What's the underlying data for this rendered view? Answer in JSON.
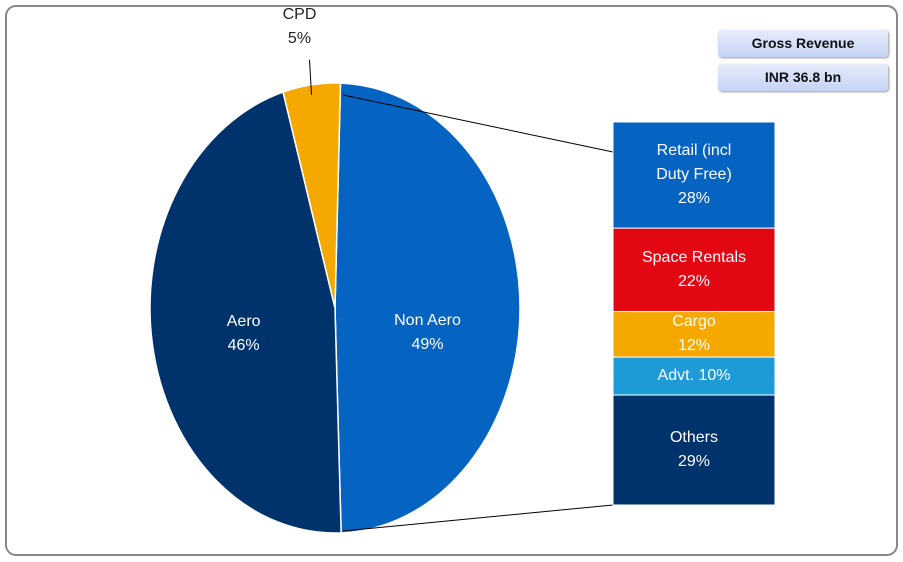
{
  "chart_data": [
    {
      "type": "pie",
      "categories": [
        "Non Aero",
        "Aero",
        "CPD"
      ],
      "values": [
        49,
        46,
        5
      ],
      "value_labels": [
        "49%",
        "46%",
        "5%"
      ],
      "colors": [
        "#0563c1",
        "#00336b",
        "#f5a800"
      ],
      "annotations": [
        "Gross Revenue",
        "INR 36.8 bn"
      ]
    },
    {
      "type": "stacked-bar",
      "categories": [
        "Retail (incl Duty Free)",
        "Space Rentals",
        "Cargo",
        "Advt.",
        "Others"
      ],
      "values": [
        28,
        22,
        12,
        10,
        29
      ],
      "value_labels": [
        "28%",
        "22%",
        "12%",
        "10%",
        "29%"
      ],
      "colors": [
        "#0563c1",
        "#e30613",
        "#f5a800",
        "#1e9bd7",
        "#00336b"
      ]
    }
  ]
}
